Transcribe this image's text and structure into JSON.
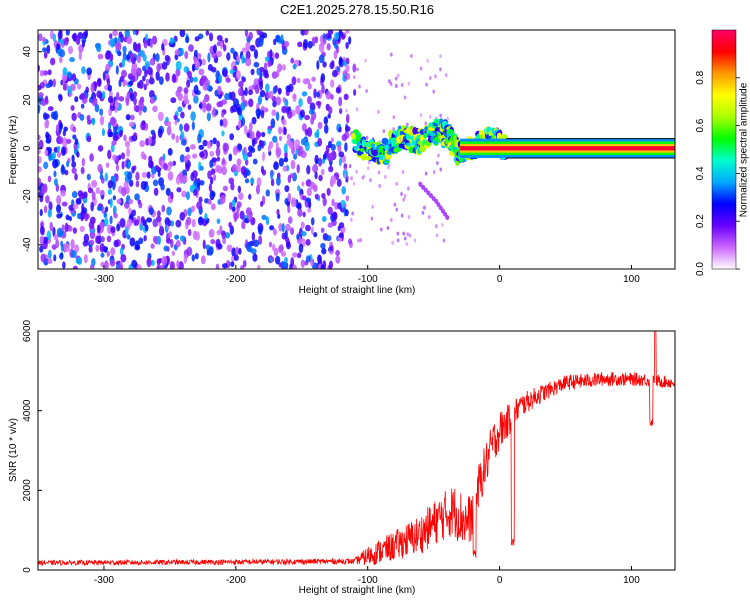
{
  "title": "C2E1.2025.278.15.50.R16",
  "chart_data": [
    {
      "type": "heatmap",
      "xlabel": "Height of straight line (km)",
      "ylabel": "Frequency (Hz)",
      "xlim": [
        -350,
        133
      ],
      "ylim": [
        -50,
        49
      ],
      "xticks": [
        -300,
        -200,
        -100,
        0,
        100
      ],
      "xtick_labels": [
        "-300",
        "-200",
        "-100",
        "0",
        "100"
      ],
      "yticks": [
        -40,
        -20,
        0,
        20,
        40
      ],
      "ytick_labels": [
        "-40",
        "-20",
        "0",
        "20",
        "40"
      ],
      "colorbar": {
        "label": "Normalized spectral amplitude",
        "range": [
          0,
          1
        ],
        "ticks": [
          0,
          0.2,
          0.4,
          0.6,
          0.8
        ],
        "tick_labels": [
          "0.0",
          "0.2",
          "0.4",
          "0.6",
          "0.8"
        ],
        "colors": [
          "#ffffff",
          "#cc66ff",
          "#6600ff",
          "#0000ff",
          "#00aaff",
          "#00ffcc",
          "#00ff00",
          "#aaff00",
          "#ffff00",
          "#ff9900",
          "#ff0000",
          "#ff0066"
        ]
      },
      "features": {
        "noise_region_x": [
          -350,
          -115
        ],
        "tone_line": {
          "x": [
            -30,
            133
          ],
          "frequency": 0,
          "amplitude": 0.95
        },
        "tone_wander_points": [
          [
            -110,
            2
          ],
          [
            -90,
            -3
          ],
          [
            -75,
            5
          ],
          [
            -60,
            3
          ],
          [
            -45,
            8
          ],
          [
            -38,
            4
          ],
          [
            -30,
            -2
          ],
          [
            -15,
            2
          ],
          [
            -5,
            4
          ],
          [
            5,
            0
          ]
        ],
        "spur_points": [
          [
            -60,
            -15
          ],
          [
            -48,
            -22
          ],
          [
            -38,
            -30
          ]
        ]
      }
    },
    {
      "type": "line",
      "xlabel": "Height of straight line (km)",
      "ylabel": "SNR (10 * v/v)",
      "xlim": [
        -350,
        133
      ],
      "ylim": [
        0,
        6000
      ],
      "xticks": [
        -300,
        -200,
        -100,
        0,
        100
      ],
      "xtick_labels": [
        "-300",
        "-200",
        "-100",
        "0",
        "100"
      ],
      "yticks": [
        0,
        2000,
        4000,
        6000
      ],
      "ytick_labels": [
        "0",
        "2000",
        "4000",
        "6000"
      ],
      "series": [
        {
          "name": "SNR",
          "color": "#ff0000",
          "anchors": [
            [
              -350,
              180
            ],
            [
              -200,
              200
            ],
            [
              -110,
              220
            ],
            [
              -100,
              350
            ],
            [
              -80,
              600
            ],
            [
              -60,
              900
            ],
            [
              -45,
              1300
            ],
            [
              -35,
              1500
            ],
            [
              -25,
              1200
            ],
            [
              -20,
              1400
            ],
            [
              -15,
              2200
            ],
            [
              -5,
              3200
            ],
            [
              0,
              3500
            ],
            [
              8,
              3800
            ],
            [
              15,
              4100
            ],
            [
              30,
              4400
            ],
            [
              50,
              4700
            ],
            [
              80,
              4800
            ],
            [
              110,
              4780
            ],
            [
              133,
              4700
            ]
          ],
          "noise_band": [
            [
              -350,
              60
            ],
            [
              -110,
              70
            ],
            [
              -100,
              250
            ],
            [
              -60,
              500
            ],
            [
              -30,
              700
            ],
            [
              -20,
              600
            ],
            [
              0,
              500
            ],
            [
              15,
              300
            ],
            [
              40,
              200
            ],
            [
              133,
              150
            ]
          ],
          "dips": [
            [
              -19,
              300
            ],
            [
              10,
              600
            ],
            [
              115,
              3600
            ]
          ],
          "spikes": [
            [
              118,
              6000
            ]
          ]
        }
      ]
    }
  ]
}
